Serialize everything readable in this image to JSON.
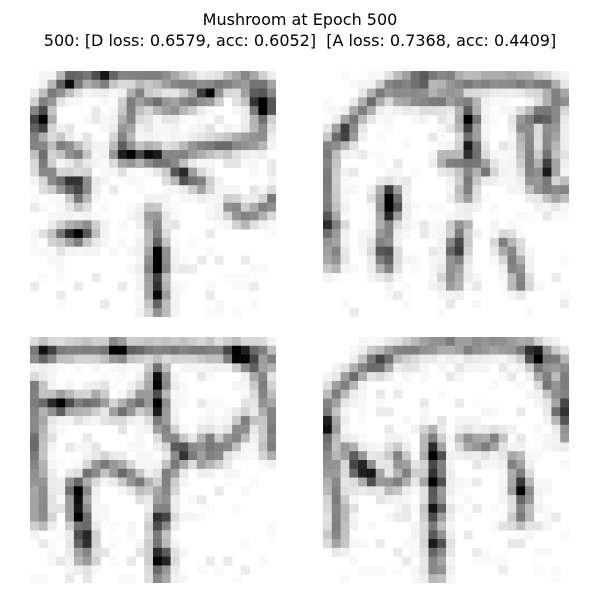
{
  "figure": {
    "title_line1": "Mushroom at Epoch 500",
    "title_line2": "500: [D loss: 0.6579, acc: 0.6052]  [A loss: 0.7368, acc: 0.4409]"
  },
  "samples": [
    {
      "index": 0,
      "strokes": [
        [
          [
            0.02,
            0.3
          ],
          [
            0.04,
            0.16
          ],
          [
            0.1,
            0.08
          ],
          [
            0.2,
            0.03
          ],
          [
            0.34,
            0.01
          ],
          [
            0.5,
            0.02
          ],
          [
            0.62,
            0.05
          ],
          [
            0.72,
            0.08
          ],
          [
            0.8,
            0.05
          ],
          [
            0.88,
            0.03
          ],
          [
            0.96,
            0.06
          ],
          [
            0.99,
            0.16
          ]
        ],
        [
          [
            0.96,
            0.06
          ],
          [
            0.94,
            0.2
          ],
          [
            0.93,
            0.28
          ]
        ],
        [
          [
            0.93,
            0.28
          ],
          [
            0.8,
            0.3
          ],
          [
            0.66,
            0.32
          ],
          [
            0.55,
            0.36
          ],
          [
            0.44,
            0.34
          ],
          [
            0.36,
            0.34
          ]
        ],
        [
          [
            0.36,
            0.34
          ],
          [
            0.4,
            0.2
          ],
          [
            0.44,
            0.08
          ]
        ],
        [
          [
            0.55,
            0.36
          ],
          [
            0.62,
            0.42
          ],
          [
            0.7,
            0.46
          ]
        ],
        [
          [
            0.04,
            0.3
          ],
          [
            0.06,
            0.4
          ],
          [
            0.12,
            0.46
          ],
          [
            0.22,
            0.46
          ],
          [
            0.2,
            0.52
          ]
        ],
        [
          [
            0.12,
            0.66
          ],
          [
            0.2,
            0.67
          ],
          [
            0.24,
            0.65
          ]
        ],
        [
          [
            0.5,
            0.58
          ],
          [
            0.52,
            0.72
          ],
          [
            0.51,
            0.86
          ],
          [
            0.52,
            0.97
          ]
        ],
        [
          [
            0.82,
            0.55
          ],
          [
            0.87,
            0.6
          ],
          [
            0.95,
            0.56
          ],
          [
            1.0,
            0.52
          ]
        ],
        [
          [
            0.48,
            0.12
          ],
          [
            0.58,
            0.15
          ],
          [
            0.66,
            0.12
          ]
        ],
        [
          [
            0.12,
            0.3
          ],
          [
            0.2,
            0.34
          ]
        ]
      ],
      "hot_spots": [
        [
          0.94,
          0.14,
          1.0
        ],
        [
          0.9,
          0.1,
          0.7
        ],
        [
          0.05,
          0.2,
          0.95
        ],
        [
          0.4,
          0.34,
          0.85
        ],
        [
          0.5,
          0.34,
          0.8
        ],
        [
          0.52,
          0.8,
          1.0
        ],
        [
          0.52,
          0.74,
          0.7
        ],
        [
          0.19,
          0.66,
          0.85
        ],
        [
          0.72,
          0.1,
          0.75
        ],
        [
          0.16,
          0.04,
          0.7
        ],
        [
          0.3,
          0.03,
          0.65
        ],
        [
          0.18,
          0.46,
          0.7
        ],
        [
          0.52,
          0.9,
          0.65
        ],
        [
          0.62,
          0.42,
          0.55
        ]
      ]
    },
    {
      "index": 1,
      "strokes": [
        [
          [
            0.02,
            0.34
          ],
          [
            0.06,
            0.26
          ],
          [
            0.12,
            0.2
          ],
          [
            0.2,
            0.12
          ],
          [
            0.28,
            0.06
          ],
          [
            0.36,
            0.03
          ],
          [
            0.46,
            0.02
          ],
          [
            0.58,
            0.05
          ],
          [
            0.7,
            0.04
          ],
          [
            0.82,
            0.04
          ],
          [
            0.92,
            0.06
          ],
          [
            0.97,
            0.12
          ]
        ],
        [
          [
            0.3,
            0.1
          ],
          [
            0.44,
            0.12
          ],
          [
            0.54,
            0.1
          ],
          [
            0.6,
            0.14
          ]
        ],
        [
          [
            0.58,
            0.14
          ],
          [
            0.6,
            0.28
          ],
          [
            0.6,
            0.4
          ],
          [
            0.58,
            0.5
          ]
        ],
        [
          [
            0.94,
            0.12
          ],
          [
            0.92,
            0.3
          ],
          [
            0.9,
            0.44
          ]
        ],
        [
          [
            0.82,
            0.2
          ],
          [
            0.84,
            0.36
          ],
          [
            0.86,
            0.46
          ],
          [
            0.94,
            0.5
          ],
          [
            1.0,
            0.48
          ]
        ],
        [
          [
            0.02,
            0.32
          ],
          [
            0.02,
            0.5
          ],
          [
            0.03,
            0.64
          ],
          [
            0.04,
            0.78
          ]
        ],
        [
          [
            0.26,
            0.5
          ],
          [
            0.26,
            0.6
          ],
          [
            0.24,
            0.72
          ],
          [
            0.26,
            0.8
          ]
        ],
        [
          [
            0.56,
            0.64
          ],
          [
            0.54,
            0.74
          ],
          [
            0.53,
            0.86
          ]
        ],
        [
          [
            0.5,
            0.36
          ],
          [
            0.56,
            0.38
          ],
          [
            0.62,
            0.36
          ],
          [
            0.66,
            0.4
          ]
        ],
        [
          [
            0.74,
            0.7
          ],
          [
            0.78,
            0.78
          ],
          [
            0.8,
            0.86
          ]
        ]
      ],
      "hot_spots": [
        [
          0.28,
          0.56,
          1.0
        ],
        [
          0.28,
          0.5,
          0.75
        ],
        [
          0.88,
          0.18,
          0.85
        ],
        [
          0.6,
          0.2,
          0.75
        ],
        [
          0.6,
          0.32,
          0.65
        ],
        [
          0.1,
          0.26,
          0.65
        ],
        [
          0.92,
          0.4,
          0.6
        ],
        [
          0.54,
          0.72,
          0.55
        ],
        [
          0.02,
          0.62,
          0.5
        ],
        [
          0.26,
          0.74,
          0.55
        ],
        [
          0.4,
          0.05,
          0.55
        ]
      ]
    },
    {
      "index": 2,
      "strokes": [
        [
          [
            0.01,
            0.07
          ],
          [
            0.12,
            0.06
          ],
          [
            0.24,
            0.05
          ],
          [
            0.36,
            0.06
          ],
          [
            0.5,
            0.05
          ],
          [
            0.62,
            0.05
          ],
          [
            0.74,
            0.06
          ],
          [
            0.84,
            0.06
          ],
          [
            0.94,
            0.06
          ],
          [
            0.99,
            0.1
          ]
        ],
        [
          [
            0.92,
            0.1
          ],
          [
            0.95,
            0.22
          ],
          [
            0.98,
            0.34
          ],
          [
            0.98,
            0.46
          ]
        ],
        [
          [
            0.02,
            0.2
          ],
          [
            0.03,
            0.34
          ],
          [
            0.02,
            0.48
          ],
          [
            0.04,
            0.62
          ],
          [
            0.04,
            0.74
          ]
        ],
        [
          [
            0.04,
            0.28
          ],
          [
            0.14,
            0.26
          ],
          [
            0.22,
            0.28
          ],
          [
            0.28,
            0.26
          ]
        ],
        [
          [
            0.52,
            0.12
          ],
          [
            0.52,
            0.22
          ],
          [
            0.52,
            0.32
          ],
          [
            0.56,
            0.4
          ],
          [
            0.6,
            0.44
          ]
        ],
        [
          [
            0.24,
            0.56
          ],
          [
            0.3,
            0.52
          ],
          [
            0.4,
            0.56
          ],
          [
            0.46,
            0.6
          ]
        ],
        [
          [
            0.88,
            0.34
          ],
          [
            0.84,
            0.4
          ],
          [
            0.8,
            0.44
          ],
          [
            0.7,
            0.46
          ],
          [
            0.62,
            0.48
          ],
          [
            0.56,
            0.56
          ]
        ],
        [
          [
            0.56,
            0.56
          ],
          [
            0.54,
            0.66
          ],
          [
            0.52,
            0.78
          ],
          [
            0.52,
            0.88
          ],
          [
            0.53,
            0.99
          ]
        ],
        [
          [
            0.18,
            0.6
          ],
          [
            0.2,
            0.7
          ],
          [
            0.22,
            0.8
          ],
          [
            0.22,
            0.9
          ]
        ],
        [
          [
            0.72,
            0.42
          ],
          [
            0.76,
            0.48
          ],
          [
            0.7,
            0.5
          ]
        ],
        [
          [
            0.36,
            0.3
          ],
          [
            0.42,
            0.28
          ],
          [
            0.46,
            0.24
          ]
        ]
      ],
      "hot_spots": [
        [
          0.84,
          0.07,
          1.0
        ],
        [
          0.36,
          0.05,
          0.9
        ],
        [
          0.2,
          0.63,
          1.0
        ],
        [
          0.2,
          0.72,
          0.8
        ],
        [
          0.54,
          0.9,
          1.0
        ],
        [
          0.12,
          0.28,
          0.9
        ],
        [
          0.52,
          0.18,
          0.8
        ],
        [
          0.52,
          0.28,
          0.75
        ],
        [
          0.88,
          0.1,
          0.75
        ],
        [
          0.22,
          0.82,
          0.7
        ],
        [
          0.06,
          0.06,
          0.65
        ],
        [
          0.62,
          0.46,
          0.55
        ],
        [
          0.54,
          0.74,
          0.65
        ]
      ]
    },
    {
      "index": 3,
      "strokes": [
        [
          [
            0.01,
            0.3
          ],
          [
            0.06,
            0.22
          ],
          [
            0.12,
            0.16
          ],
          [
            0.2,
            0.1
          ],
          [
            0.3,
            0.06
          ],
          [
            0.4,
            0.04
          ],
          [
            0.5,
            0.03
          ],
          [
            0.6,
            0.04
          ],
          [
            0.7,
            0.03
          ],
          [
            0.8,
            0.04
          ],
          [
            0.88,
            0.06
          ],
          [
            0.96,
            0.1
          ],
          [
            0.99,
            0.2
          ]
        ],
        [
          [
            0.99,
            0.2
          ],
          [
            0.98,
            0.3
          ],
          [
            1.0,
            0.4
          ]
        ],
        [
          [
            0.02,
            0.3
          ],
          [
            0.02,
            0.44
          ],
          [
            0.04,
            0.58
          ],
          [
            0.06,
            0.7
          ],
          [
            0.06,
            0.82
          ]
        ],
        [
          [
            0.1,
            0.46
          ],
          [
            0.14,
            0.5
          ],
          [
            0.18,
            0.54
          ],
          [
            0.2,
            0.58
          ]
        ],
        [
          [
            0.44,
            0.4
          ],
          [
            0.46,
            0.5
          ],
          [
            0.46,
            0.62
          ],
          [
            0.45,
            0.74
          ],
          [
            0.46,
            0.86
          ],
          [
            0.46,
            0.96
          ]
        ],
        [
          [
            0.78,
            0.5
          ],
          [
            0.8,
            0.58
          ],
          [
            0.82,
            0.66
          ],
          [
            0.8,
            0.74
          ]
        ],
        [
          [
            0.88,
            0.08
          ],
          [
            0.9,
            0.16
          ],
          [
            0.94,
            0.22
          ]
        ],
        [
          [
            0.3,
            0.48
          ],
          [
            0.34,
            0.56
          ],
          [
            0.28,
            0.6
          ]
        ],
        [
          [
            0.58,
            0.42
          ],
          [
            0.66,
            0.44
          ],
          [
            0.7,
            0.42
          ]
        ]
      ],
      "hot_spots": [
        [
          0.86,
          0.08,
          1.0
        ],
        [
          0.45,
          0.48,
          1.0
        ],
        [
          0.45,
          0.58,
          0.8
        ],
        [
          0.14,
          0.54,
          0.9
        ],
        [
          0.46,
          0.7,
          0.7
        ],
        [
          0.8,
          0.62,
          0.7
        ],
        [
          0.02,
          0.36,
          0.65
        ],
        [
          0.24,
          0.12,
          0.55
        ],
        [
          0.46,
          0.84,
          0.65
        ],
        [
          0.96,
          0.3,
          0.55
        ],
        [
          0.2,
          0.56,
          0.55
        ]
      ]
    }
  ]
}
